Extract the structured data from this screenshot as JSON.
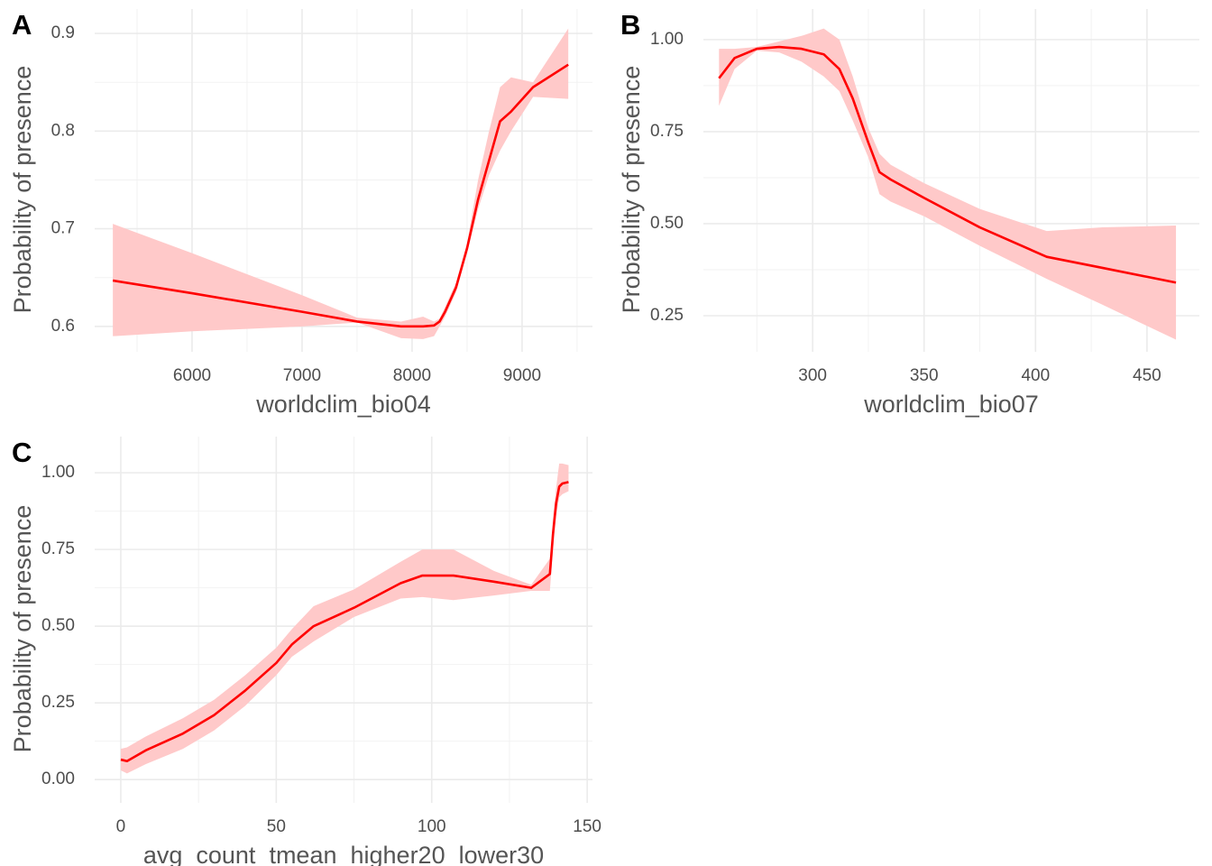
{
  "chart_data": [
    {
      "type": "line",
      "panel_label": "A",
      "x_label": "worldclim_bio04",
      "y_label": "Probability of presence",
      "xlim": [
        5115,
        9640
      ],
      "ylim": [
        0.574,
        0.925
      ],
      "xticks": [
        6000,
        7000,
        8000,
        9000
      ],
      "yticks": [
        0.6,
        0.7,
        0.8,
        0.9
      ],
      "grid": true,
      "x": [
        5280,
        6000,
        7000,
        7500,
        7900,
        8100,
        8200,
        8250,
        8300,
        8400,
        8500,
        8600,
        8700,
        8800,
        8900,
        9100,
        9420
      ],
      "series": [
        {
          "color": "#ff0000",
          "band_color": "#ffc9c9",
          "values": [
            0.647,
            0.634,
            0.615,
            0.605,
            0.6,
            0.6,
            0.601,
            0.605,
            0.615,
            0.64,
            0.68,
            0.73,
            0.77,
            0.81,
            0.82,
            0.845,
            0.868
          ],
          "lower": [
            0.59,
            0.595,
            0.6,
            0.604,
            0.588,
            0.587,
            0.59,
            0.6,
            0.61,
            0.635,
            0.675,
            0.72,
            0.755,
            0.78,
            0.8,
            0.835,
            0.833
          ],
          "upper": [
            0.705,
            0.675,
            0.632,
            0.609,
            0.605,
            0.61,
            0.605,
            0.608,
            0.62,
            0.645,
            0.685,
            0.75,
            0.8,
            0.845,
            0.855,
            0.85,
            0.905
          ]
        }
      ]
    },
    {
      "type": "line",
      "panel_label": "B",
      "x_label": "worldclim_bio07",
      "y_label": "Probability of presence",
      "xlim": [
        251,
        473.5
      ],
      "ylim": [
        0.152,
        1.083
      ],
      "xticks": [
        300,
        350,
        400,
        450
      ],
      "yticks": [
        {
          "value": 0.25,
          "label": "0.25"
        },
        {
          "value": 0.5,
          "label": "0.50"
        },
        0.75,
        {
          "value": 1,
          "label": "1.00"
        }
      ],
      "grid": true,
      "x": [
        258,
        265,
        275,
        285,
        295,
        305,
        312,
        318,
        325,
        330,
        335,
        350,
        375,
        405,
        430,
        463
      ],
      "series": [
        {
          "color": "#ff0000",
          "band_color": "#ffc9c9",
          "values": [
            0.895,
            0.95,
            0.975,
            0.98,
            0.975,
            0.96,
            0.92,
            0.84,
            0.72,
            0.64,
            0.62,
            0.57,
            0.49,
            0.41,
            0.38,
            0.34
          ],
          "lower": [
            0.82,
            0.92,
            0.97,
            0.965,
            0.94,
            0.9,
            0.86,
            0.78,
            0.68,
            0.58,
            0.56,
            0.52,
            0.44,
            0.35,
            0.28,
            0.185
          ],
          "upper": [
            0.975,
            0.975,
            0.98,
            0.995,
            1.01,
            1.03,
            1.0,
            0.9,
            0.76,
            0.69,
            0.66,
            0.61,
            0.54,
            0.48,
            0.49,
            0.495
          ]
        }
      ]
    },
    {
      "type": "line",
      "panel_label": "C",
      "x_label": "avg_count_tmean_higher20_lower30",
      "y_label": "Probability of presence",
      "xlim": [
        -8.4,
        151.7
      ],
      "ylim": [
        -0.076,
        1.118
      ],
      "xticks": [
        0,
        50,
        100,
        150
      ],
      "yticks": [
        {
          "value": 0,
          "label": "0.00"
        },
        0.25,
        {
          "value": 0.5,
          "label": "0.50"
        },
        0.75,
        {
          "value": 1,
          "label": "1.00"
        }
      ],
      "grid": true,
      "x": [
        0,
        2,
        8,
        20,
        30,
        40,
        50,
        55,
        62,
        75,
        90,
        97,
        107,
        120,
        132,
        138,
        139,
        140,
        141,
        142,
        144
      ],
      "series": [
        {
          "color": "#ff0000",
          "band_color": "#ffc9c9",
          "values": [
            0.065,
            0.06,
            0.095,
            0.15,
            0.21,
            0.29,
            0.38,
            0.44,
            0.5,
            0.56,
            0.64,
            0.665,
            0.665,
            0.645,
            0.625,
            0.67,
            0.8,
            0.9,
            0.955,
            0.965,
            0.97
          ],
          "lower": [
            0.03,
            0.02,
            0.05,
            0.1,
            0.16,
            0.24,
            0.34,
            0.4,
            0.45,
            0.53,
            0.59,
            0.595,
            0.585,
            0.6,
            0.615,
            0.615,
            0.75,
            0.86,
            0.92,
            0.93,
            0.94
          ],
          "upper": [
            0.1,
            0.105,
            0.14,
            0.2,
            0.26,
            0.34,
            0.43,
            0.49,
            0.565,
            0.62,
            0.71,
            0.75,
            0.75,
            0.68,
            0.635,
            0.72,
            0.85,
            0.95,
            1.03,
            1.03,
            1.025
          ]
        }
      ]
    }
  ]
}
